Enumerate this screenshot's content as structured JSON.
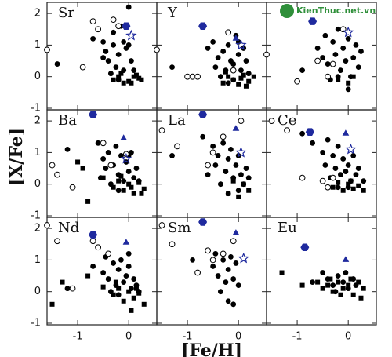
{
  "axes": {
    "xlabel": "[Fe/H]",
    "ylabel": "[X/Fe]",
    "xlim": [
      -1.6,
      0.55
    ],
    "ylim": [
      -1.05,
      2.35
    ],
    "xticks": [
      -1,
      0
    ],
    "yticks": [
      -1,
      0,
      1,
      2
    ]
  },
  "watermark": "KienThuc.net.vn",
  "chart_data": [
    {
      "type": "scatter",
      "label": "Sr",
      "series": [
        {
          "marker": "filled-circle",
          "color": "#000000",
          "x": [
            -1.4,
            -0.7,
            -0.5,
            -0.45,
            -0.4,
            -0.3,
            -0.25,
            -0.2,
            -0.15,
            -0.1,
            -0.05,
            0,
            0.05,
            -0.35,
            -0.3,
            -0.1,
            0.1,
            -0.5,
            -0.2,
            0
          ],
          "y": [
            0.4,
            1.2,
            1.1,
            0.8,
            0.5,
            1.0,
            0.3,
            0.7,
            1.6,
            0.2,
            0.9,
            2.2,
            0.5,
            0.1,
            1.4,
            1.1,
            0.2,
            0.6,
            -0.1,
            1.0
          ]
        },
        {
          "marker": "square",
          "color": "#000000",
          "x": [
            -0.3,
            -0.2,
            -0.1,
            0,
            0.1,
            0.2,
            0.25,
            -0.15,
            0.05,
            0.15
          ],
          "y": [
            -0.1,
            0,
            -0.2,
            -0.15,
            0,
            -0.05,
            -0.1,
            0.1,
            -0.2,
            0.05
          ]
        },
        {
          "marker": "open-circle",
          "color": "#000000",
          "x": [
            -1.6,
            -0.9,
            -0.7,
            -0.6,
            -0.3,
            -0.2
          ],
          "y": [
            0.85,
            0.3,
            1.75,
            1.5,
            1.8,
            1.6
          ]
        },
        {
          "marker": "hexagon",
          "color": "#1f2a9e",
          "x": [
            -0.05
          ],
          "y": [
            1.6
          ]
        },
        {
          "marker": "star",
          "color": "#1f2a9e",
          "x": [
            0.05
          ],
          "y": [
            1.3
          ]
        }
      ]
    },
    {
      "type": "scatter",
      "label": "Y",
      "series": [
        {
          "marker": "filled-circle",
          "color": "#000000",
          "x": [
            -1.3,
            -0.6,
            -0.5,
            -0.45,
            -0.4,
            -0.3,
            -0.25,
            -0.2,
            -0.15,
            -0.1,
            -0.05,
            0,
            0.05,
            0.1,
            -0.35,
            0.15,
            -0.2,
            0,
            0.2,
            -0.1
          ],
          "y": [
            0.3,
            0.9,
            1.1,
            0.3,
            0.6,
            0.8,
            0.2,
            1.0,
            0.5,
            0.4,
            1.3,
            0.7,
            0.2,
            0.9,
            0.0,
            0.5,
            -0.2,
            1.1,
            0.1,
            -0.1
          ]
        },
        {
          "marker": "square",
          "color": "#000000",
          "x": [
            -0.3,
            -0.2,
            -0.1,
            0,
            0.1,
            0.2,
            -0.25,
            0.05,
            0.15,
            0.3
          ],
          "y": [
            -0.2,
            0,
            -0.1,
            -0.25,
            0.05,
            -0.15,
            0.15,
            -0.05,
            -0.3,
            0
          ]
        },
        {
          "marker": "open-circle",
          "color": "#000000",
          "x": [
            -1.6,
            -1.0,
            -0.9,
            -0.8,
            -0.2,
            -0.1
          ],
          "y": [
            0.85,
            0.0,
            0.0,
            0.0,
            1.4,
            0.2
          ]
        },
        {
          "marker": "hexagon",
          "color": "#1f2a9e",
          "x": [
            -0.7
          ],
          "y": [
            1.6
          ]
        },
        {
          "marker": "triangle",
          "color": "#1f2a9e",
          "x": [
            -0.05
          ],
          "y": [
            1.2
          ]
        },
        {
          "marker": "star",
          "color": "#1f2a9e",
          "x": [
            0.05
          ],
          "y": [
            1.0
          ]
        }
      ]
    },
    {
      "type": "scatter",
      "series": [
        {
          "marker": "filled-circle",
          "color": "#000000",
          "x": [
            -0.9,
            -0.6,
            -0.5,
            -0.45,
            -0.4,
            -0.3,
            -0.25,
            -0.2,
            -0.15,
            -0.1,
            -0.05,
            0,
            0.05,
            0.1,
            0.2,
            -0.35,
            0.15,
            -0.2,
            0,
            0.25
          ],
          "y": [
            0.2,
            0.9,
            0.6,
            1.3,
            0.4,
            1.1,
            0.7,
            1.5,
            0.2,
            0.9,
            0.5,
            1.2,
            0.0,
            0.6,
            0.3,
            -0.1,
            1.0,
            0.0,
            -0.4,
            0.8
          ]
        },
        {
          "marker": "square",
          "color": "#000000",
          "x": [
            -0.2,
            0,
            0.1
          ],
          "y": [
            -0.1,
            -0.2,
            0
          ]
        },
        {
          "marker": "open-circle",
          "color": "#000000",
          "x": [
            -1.6,
            -1.0,
            -0.6,
            -0.4,
            -0.3,
            -0.1
          ],
          "y": [
            0.7,
            -0.15,
            0.5,
            0.0,
            0.4,
            1.5
          ]
        },
        {
          "marker": "hexagon",
          "color": "#1f2a9e",
          "x": [
            -0.7
          ],
          "y": [
            1.75
          ]
        },
        {
          "marker": "star",
          "color": "#1f2a9e",
          "x": [
            0
          ],
          "y": [
            1.4
          ]
        }
      ]
    },
    {
      "type": "scatter",
      "label": "Ba",
      "series": [
        {
          "marker": "filled-circle",
          "color": "#000000",
          "x": [
            -1.2,
            -0.6,
            -0.5,
            -0.45,
            -0.4,
            -0.3,
            -0.25,
            -0.2,
            -0.15,
            -0.1,
            -0.05,
            0,
            0.05,
            0.1,
            -0.35,
            0.15,
            -0.2,
            0,
            0.2,
            -0.55
          ],
          "y": [
            1.1,
            1.3,
            0.8,
            0.5,
            1.0,
            0.6,
            1.2,
            0.3,
            0.9,
            0.1,
            0.7,
            0.4,
            1.0,
            0.2,
            0.0,
            0.5,
            -0.2,
            0.9,
            0.1,
            0.2
          ]
        },
        {
          "marker": "square",
          "color": "#000000",
          "x": [
            -1.0,
            -0.9,
            -0.8,
            -0.5,
            -0.3,
            -0.2,
            -0.1,
            0,
            0.1,
            0.2,
            0.3,
            -0.15,
            0.05,
            0.25
          ],
          "y": [
            0.7,
            0.5,
            -0.55,
            0.2,
            -0.1,
            0.1,
            -0.2,
            0,
            -0.3,
            0.05,
            -0.15,
            0.25,
            -0.1,
            -0.3
          ]
        },
        {
          "marker": "open-circle",
          "color": "#000000",
          "x": [
            -1.5,
            -1.4,
            -1.1,
            -0.5,
            -0.35,
            -0.05
          ],
          "y": [
            0.6,
            0.3,
            -0.1,
            1.3,
            0.6,
            0.95
          ]
        },
        {
          "marker": "hexagon",
          "color": "#1f2a9e",
          "x": [
            -0.7
          ],
          "y": [
            2.2
          ]
        },
        {
          "marker": "triangle",
          "color": "#1f2a9e",
          "x": [
            -0.1
          ],
          "y": [
            1.45
          ]
        },
        {
          "marker": "star",
          "color": "#1f2a9e",
          "x": [
            -0.05
          ],
          "y": [
            0.8
          ]
        }
      ]
    },
    {
      "type": "scatter",
      "label": "La",
      "series": [
        {
          "marker": "filled-circle",
          "color": "#000000",
          "x": [
            -1.3,
            -0.7,
            -0.5,
            -0.45,
            -0.4,
            -0.3,
            -0.25,
            -0.2,
            -0.15,
            -0.1,
            -0.05,
            0,
            0.05,
            0.1,
            -0.35,
            0.15,
            -0.2,
            0,
            0.2,
            -0.6
          ],
          "y": [
            0.9,
            1.5,
            1.2,
            0.6,
            0.9,
            1.3,
            0.4,
            0.8,
            1.1,
            0.2,
            0.6,
            0.9,
            0.3,
            0.0,
            0.0,
            0.5,
            -0.3,
            -0.2,
            0.2,
            0.3
          ]
        },
        {
          "marker": "square",
          "color": "#000000",
          "x": [
            -0.2,
            -0.1,
            0,
            0.1,
            0.2
          ],
          "y": [
            -0.3,
            0.1,
            -0.4,
            0,
            -0.2
          ]
        },
        {
          "marker": "open-circle",
          "color": "#000000",
          "x": [
            -1.5,
            -1.2,
            -0.6,
            -0.5,
            -0.3,
            0.05
          ],
          "y": [
            1.7,
            1.2,
            0.6,
            1.0,
            1.5,
            2.0
          ]
        },
        {
          "marker": "hexagon",
          "color": "#1f2a9e",
          "x": [
            -0.7
          ],
          "y": [
            2.2
          ]
        },
        {
          "marker": "triangle",
          "color": "#1f2a9e",
          "x": [
            -0.05
          ],
          "y": [
            1.75
          ]
        },
        {
          "marker": "star",
          "color": "#1f2a9e",
          "x": [
            0.05
          ],
          "y": [
            1.0
          ]
        }
      ]
    },
    {
      "type": "scatter",
      "label": "Ce",
      "series": [
        {
          "marker": "filled-circle",
          "color": "#000000",
          "x": [
            -0.9,
            -0.7,
            -0.5,
            -0.45,
            -0.4,
            -0.3,
            -0.25,
            -0.2,
            -0.15,
            -0.1,
            -0.05,
            0,
            0.05,
            0.1,
            -0.35,
            0.15,
            -0.2,
            0,
            0.2,
            0.3
          ],
          "y": [
            1.6,
            1.3,
            1.0,
            0.6,
            1.4,
            0.9,
            0.5,
            1.2,
            0.3,
            0.8,
            0.4,
            0.6,
            0.1,
            0.9,
            0.2,
            0.3,
            -0.1,
            -0.1,
            0.5,
            0.1
          ]
        },
        {
          "marker": "square",
          "color": "#000000",
          "x": [
            -0.3,
            -0.2,
            -0.1,
            0,
            0.1,
            0.2,
            0.3,
            0.05
          ],
          "y": [
            -0.1,
            0.05,
            -0.2,
            0,
            -0.15,
            -0.05,
            -0.2,
            0.1
          ]
        },
        {
          "marker": "open-circle",
          "color": "#000000",
          "x": [
            -1.5,
            -1.2,
            -0.9,
            -0.5,
            -0.4,
            -0.3
          ],
          "y": [
            2.0,
            1.7,
            0.2,
            0.1,
            -0.1,
            0.2
          ]
        },
        {
          "marker": "hexagon",
          "color": "#1f2a9e",
          "x": [
            -0.75
          ],
          "y": [
            1.65
          ]
        },
        {
          "marker": "triangle",
          "color": "#1f2a9e",
          "x": [
            -0.05
          ],
          "y": [
            1.6
          ]
        },
        {
          "marker": "star",
          "color": "#1f2a9e",
          "x": [
            0.05
          ],
          "y": [
            1.1
          ]
        }
      ]
    },
    {
      "type": "scatter",
      "label": "Nd",
      "series": [
        {
          "marker": "filled-circle",
          "color": "#000000",
          "x": [
            -1.2,
            -0.7,
            -0.5,
            -0.45,
            -0.4,
            -0.3,
            -0.25,
            -0.2,
            -0.15,
            -0.1,
            -0.05,
            0,
            0.05,
            0.1,
            -0.35,
            0.15,
            -0.2,
            0,
            0.2,
            -0.6
          ],
          "y": [
            0.1,
            0.8,
            0.6,
            1.1,
            0.4,
            0.9,
            0.2,
            0.7,
            1.0,
            0.3,
            0.5,
            0.8,
            0.1,
            0.4,
            0.0,
            0.2,
            -0.1,
            1.2,
            0.0,
            1.4
          ]
        },
        {
          "marker": "square",
          "color": "#000000",
          "x": [
            -1.5,
            -1.3,
            -0.8,
            -0.5,
            -0.3,
            -0.2,
            -0.1,
            0,
            0.1,
            0.2,
            0.3,
            -0.25,
            0.05,
            0.15
          ],
          "y": [
            -0.4,
            0.3,
            0.5,
            0.15,
            -0.1,
            0.1,
            -0.3,
            0,
            -0.2,
            -0.05,
            -0.4,
            0.3,
            -0.6,
            0.1
          ]
        },
        {
          "marker": "open-circle",
          "color": "#000000",
          "x": [
            -1.6,
            -1.4,
            -1.1,
            -0.7,
            -0.6,
            -0.4
          ],
          "y": [
            2.1,
            1.6,
            0.1,
            1.6,
            1.4,
            1.2
          ]
        },
        {
          "marker": "hexagon",
          "color": "#1f2a9e",
          "x": [
            -0.7
          ],
          "y": [
            1.8
          ]
        },
        {
          "marker": "triangle",
          "color": "#1f2a9e",
          "x": [
            -0.05
          ],
          "y": [
            1.55
          ]
        }
      ]
    },
    {
      "type": "scatter",
      "label": "Sm",
      "series": [
        {
          "marker": "filled-circle",
          "color": "#000000",
          "x": [
            -0.9,
            -0.5,
            -0.45,
            -0.4,
            -0.3,
            -0.25,
            -0.2,
            -0.15,
            -0.1,
            -0.05,
            0,
            -0.35,
            -0.2,
            -0.1
          ],
          "y": [
            1.0,
            0.8,
            1.2,
            0.5,
            1.0,
            0.3,
            0.7,
            1.1,
            0.4,
            0.9,
            0.2,
            0.0,
            -0.3,
            -0.4
          ]
        },
        {
          "marker": "open-circle",
          "color": "#000000",
          "x": [
            -1.5,
            -1.3,
            -0.8,
            -0.6,
            -0.5,
            -0.3,
            -0.1
          ],
          "y": [
            2.1,
            1.5,
            0.6,
            1.3,
            1.0,
            1.2,
            1.6
          ]
        },
        {
          "marker": "hexagon",
          "color": "#1f2a9e",
          "x": [
            -0.7
          ],
          "y": [
            2.2
          ]
        },
        {
          "marker": "triangle",
          "color": "#1f2a9e",
          "x": [
            -0.05
          ],
          "y": [
            1.85
          ]
        },
        {
          "marker": "star",
          "color": "#1f2a9e",
          "x": [
            0.1
          ],
          "y": [
            1.05
          ]
        }
      ]
    },
    {
      "type": "scatter",
      "label": "Eu",
      "series": [
        {
          "marker": "filled-circle",
          "color": "#000000",
          "x": [
            -0.7,
            -0.5,
            -0.4,
            -0.3,
            -0.2,
            -0.1,
            0,
            0.1,
            -0.25,
            -0.05,
            0.15
          ],
          "y": [
            0.3,
            0.6,
            0.4,
            0.2,
            0.5,
            0.3,
            0.1,
            0.4,
            0.0,
            0.6,
            0.2
          ]
        },
        {
          "marker": "square",
          "color": "#000000",
          "x": [
            -1.3,
            -0.9,
            -0.6,
            -0.5,
            -0.4,
            -0.3,
            -0.2,
            -0.1,
            0,
            0.1,
            0.2,
            0.3,
            -0.15,
            0.05,
            0.25,
            -0.35
          ],
          "y": [
            0.6,
            0.2,
            0.3,
            0.1,
            0.2,
            0.0,
            0.3,
            0.1,
            0.2,
            -0.1,
            0.3,
            0.1,
            -0.1,
            0.4,
            -0.2,
            0.4
          ]
        },
        {
          "marker": "hexagon",
          "color": "#1f2a9e",
          "x": [
            -0.85
          ],
          "y": [
            1.4
          ]
        },
        {
          "marker": "triangle",
          "color": "#1f2a9e",
          "x": [
            -0.05
          ],
          "y": [
            1.0
          ]
        }
      ]
    }
  ]
}
